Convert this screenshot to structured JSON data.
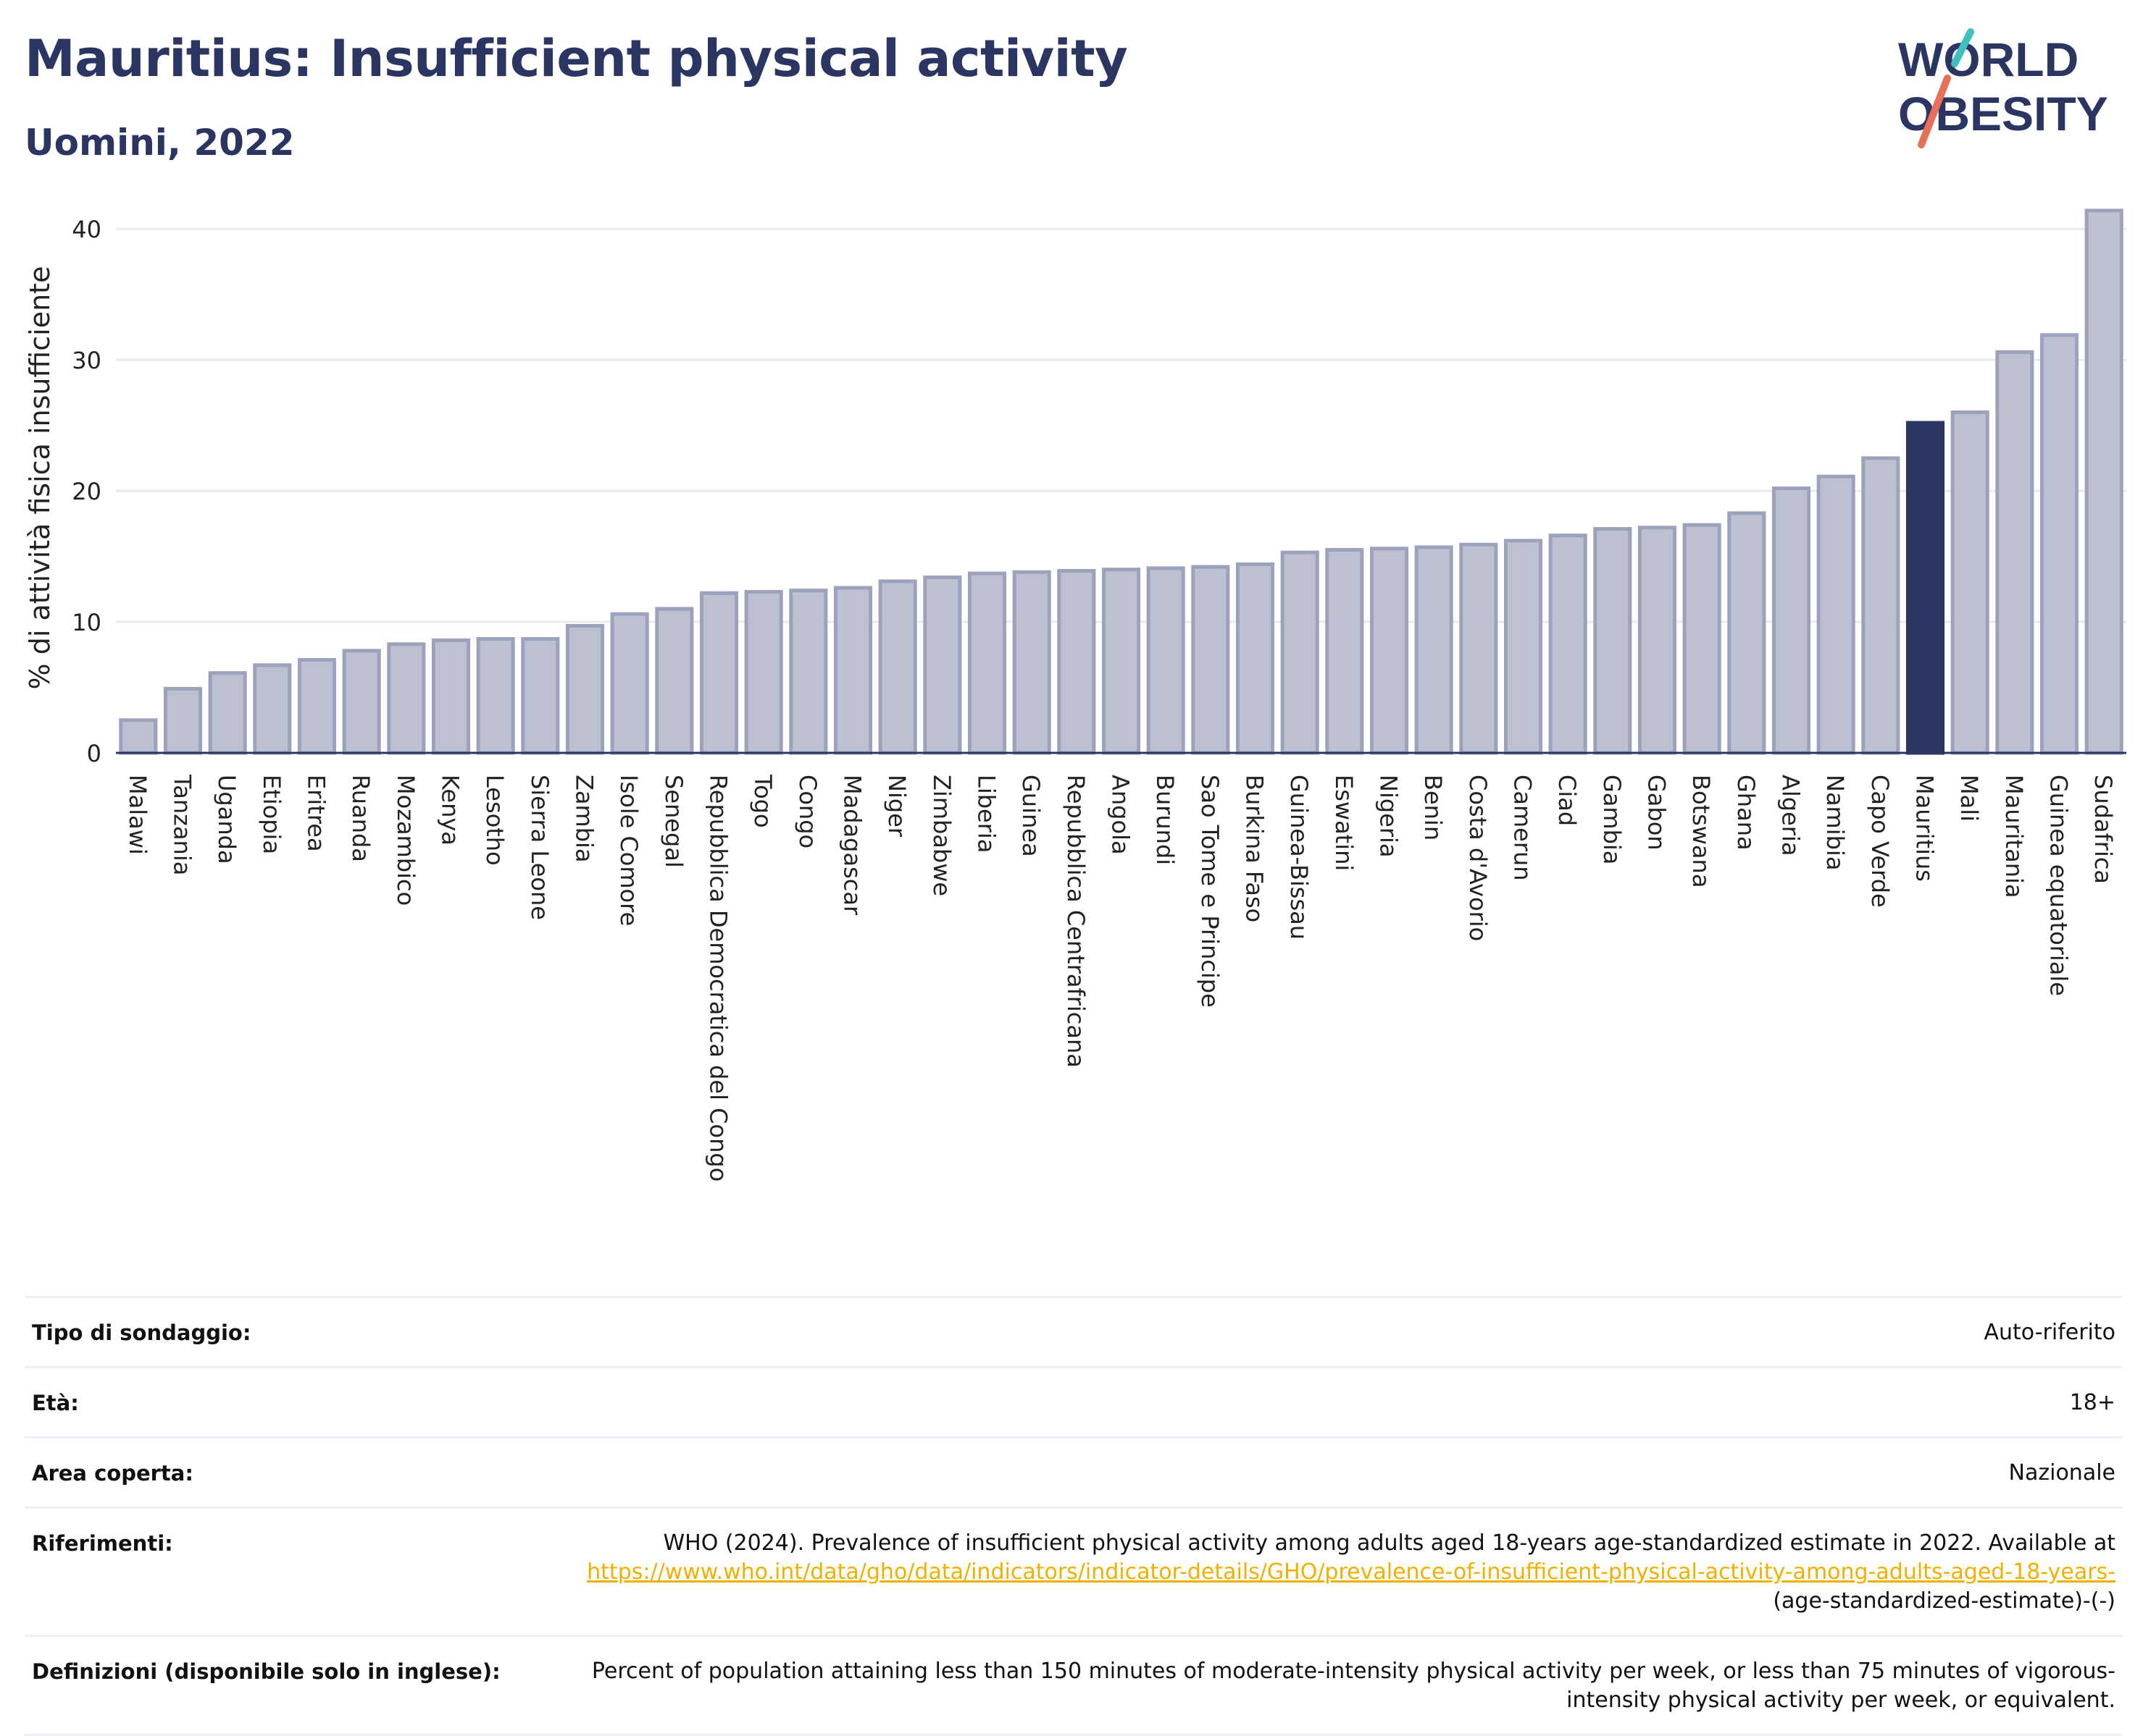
{
  "header": {
    "title": "Mauritius: Insufficient physical activity",
    "subtitle": "Uomini, 2022",
    "logo_line1": "WORLD",
    "logo_line2": "OBESITY"
  },
  "colors": {
    "title": "#2a3561",
    "bar": "#bcc0d0",
    "bar_border": "#9ca2bb",
    "highlight": "#2a3561",
    "link": "#f0b000",
    "logo_teal": "#3fbfbf",
    "logo_coral": "#e8705a"
  },
  "chart_data": {
    "type": "bar",
    "ylabel": "% di attività fisica insufficiente",
    "ylim": [
      0,
      42
    ],
    "yticks": [
      0,
      10,
      20,
      30,
      40
    ],
    "grid": true,
    "highlight": "Mauritius",
    "categories": [
      "Malawi",
      "Tanzania",
      "Uganda",
      "Etiopia",
      "Eritrea",
      "Ruanda",
      "Mozambico",
      "Kenya",
      "Lesotho",
      "Sierra Leone",
      "Zambia",
      "Isole Comore",
      "Senegal",
      "Repubblica Democratica del Congo",
      "Togo",
      "Congo",
      "Madagascar",
      "Niger",
      "Zimbabwe",
      "Liberia",
      "Guinea",
      "Repubblica Centrafricana",
      "Angola",
      "Burundi",
      "Sao Tome e Principe",
      "Burkina Faso",
      "Guinea-Bissau",
      "Eswatini",
      "Nigeria",
      "Benin",
      "Costa d'Avorio",
      "Camerun",
      "Ciad",
      "Gambia",
      "Gabon",
      "Botswana",
      "Ghana",
      "Algeria",
      "Namibia",
      "Capo Verde",
      "Mauritius",
      "Mali",
      "Mauritania",
      "Guinea equatoriale",
      "Sudafrica"
    ],
    "values": [
      2.5,
      4.9,
      6.1,
      6.7,
      7.1,
      7.8,
      8.3,
      8.6,
      8.7,
      8.7,
      9.7,
      10.6,
      11.0,
      12.2,
      12.3,
      12.4,
      12.6,
      13.1,
      13.4,
      13.7,
      13.8,
      13.9,
      14.0,
      14.1,
      14.2,
      14.4,
      15.3,
      15.5,
      15.6,
      15.7,
      15.9,
      16.2,
      16.6,
      17.1,
      17.2,
      17.4,
      18.3,
      20.2,
      21.1,
      22.5,
      25.2,
      26.0,
      30.6,
      31.9,
      41.4
    ]
  },
  "info": {
    "rows": [
      {
        "label": "Tipo di sondaggio:",
        "value": "Auto-riferito"
      },
      {
        "label": "Età:",
        "value": "18+"
      },
      {
        "label": "Area coperta:",
        "value": "Nazionale"
      }
    ],
    "references": {
      "label": "Riferimenti:",
      "text": "WHO (2024). Prevalence of insufficient physical activity among adults aged 18-years age-standardized estimate in 2022. Available at",
      "link": "https://www.who.int/data/gho/data/indicators/indicator-details/GHO/prevalence-of-insufficient-physical-activity-among-adults-aged-18-years-",
      "suffix": "(age-standardized-estimate)-(-)"
    },
    "definitions": {
      "label": "Definizioni (disponibile solo in inglese):",
      "value": "Percent of population attaining less than 150 minutes of moderate-intensity physical activity per week, or less than 75 minutes of vigorous-intensity physical activity per week, or equivalent."
    }
  }
}
